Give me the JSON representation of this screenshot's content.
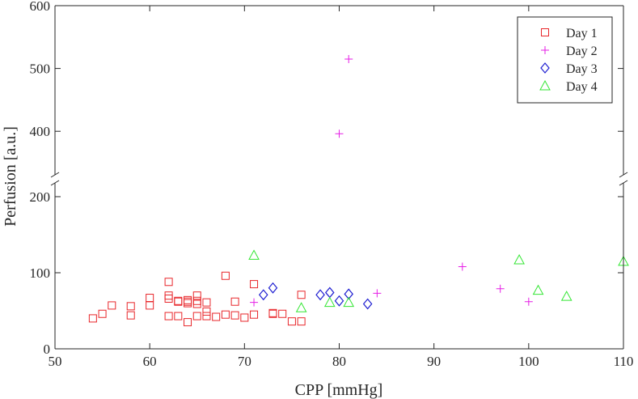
{
  "chart_data": {
    "type": "scatter",
    "xlabel": "CPP [mmHg]",
    "ylabel": "Perfusion [a.u.]",
    "xlim": [
      50,
      110
    ],
    "x_ticks": [
      "50",
      "60",
      "70",
      "80",
      "90",
      "100",
      "110"
    ],
    "y_axis_break": {
      "lower_range": [
        0,
        200
      ],
      "upper_range": [
        350,
        600
      ]
    },
    "y_ticks_lower": [
      "0",
      "100",
      "200"
    ],
    "y_ticks_upper": [
      "400",
      "500",
      "600"
    ],
    "grid": false,
    "legend_position": "top-right",
    "series": [
      {
        "name": "Day 1",
        "marker": "square",
        "color": "#e8262a",
        "points": [
          [
            54,
            40
          ],
          [
            55,
            46
          ],
          [
            56,
            57
          ],
          [
            58,
            56
          ],
          [
            58,
            44
          ],
          [
            60,
            67
          ],
          [
            60,
            57
          ],
          [
            62,
            88
          ],
          [
            62,
            70
          ],
          [
            62,
            66
          ],
          [
            62,
            43
          ],
          [
            63,
            63
          ],
          [
            63,
            62
          ],
          [
            63,
            43
          ],
          [
            64,
            64
          ],
          [
            64,
            62
          ],
          [
            64,
            60
          ],
          [
            64,
            35
          ],
          [
            65,
            70
          ],
          [
            65,
            63
          ],
          [
            65,
            59
          ],
          [
            65,
            43
          ],
          [
            66,
            61
          ],
          [
            66,
            49
          ],
          [
            66,
            43
          ],
          [
            67,
            42
          ],
          [
            68,
            96
          ],
          [
            68,
            45
          ],
          [
            69,
            62
          ],
          [
            69,
            44
          ],
          [
            70,
            41
          ],
          [
            71,
            85
          ],
          [
            71,
            45
          ],
          [
            73,
            47
          ],
          [
            73,
            46
          ],
          [
            74,
            46
          ],
          [
            75,
            36
          ],
          [
            76,
            71
          ],
          [
            76,
            36
          ]
        ]
      },
      {
        "name": "Day 2",
        "marker": "plus",
        "color": "#e61ee6",
        "points": [
          [
            71,
            61
          ],
          [
            80,
            396
          ],
          [
            81,
            515
          ],
          [
            84,
            73
          ],
          [
            93,
            108
          ],
          [
            97,
            79
          ],
          [
            100,
            62
          ]
        ]
      },
      {
        "name": "Day 3",
        "marker": "diamond",
        "color": "#1f1fd1",
        "points": [
          [
            72,
            71
          ],
          [
            73,
            80
          ],
          [
            78,
            71
          ],
          [
            79,
            74
          ],
          [
            80,
            63
          ],
          [
            81,
            72
          ],
          [
            83,
            59
          ]
        ]
      },
      {
        "name": "Day 4",
        "marker": "triangle",
        "color": "#33e633",
        "points": [
          [
            71,
            123
          ],
          [
            76,
            54
          ],
          [
            79,
            61
          ],
          [
            81,
            61
          ],
          [
            99,
            117
          ],
          [
            101,
            77
          ],
          [
            104,
            69
          ],
          [
            110,
            115
          ]
        ]
      }
    ]
  }
}
